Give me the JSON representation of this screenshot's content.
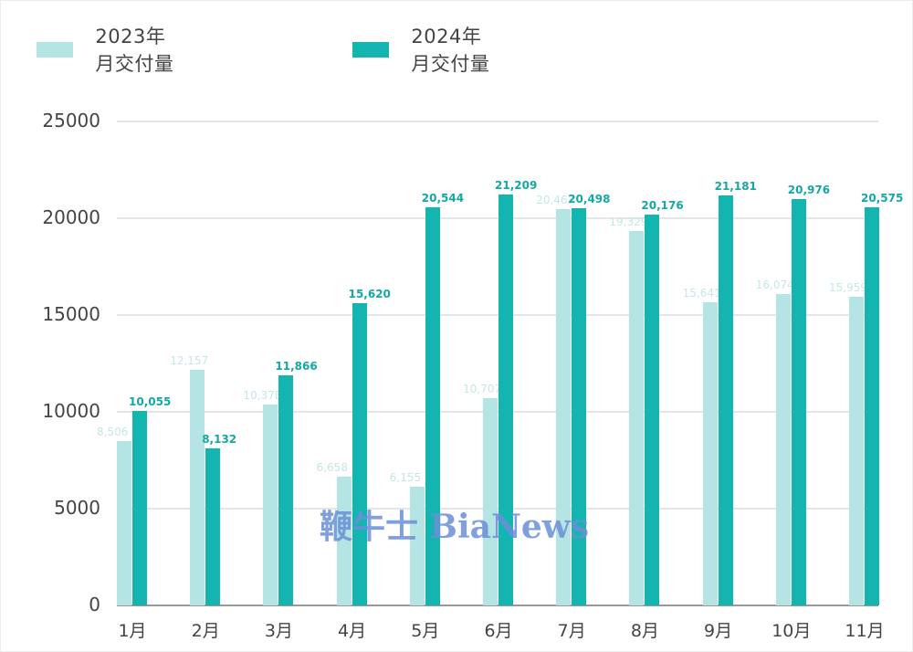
{
  "legend": [
    {
      "label": "2023年月交付量",
      "color": "#b4e4e4"
    },
    {
      "label": "2024年月交付量",
      "color": "#14b4b0"
    }
  ],
  "watermark": "鞭牛士 BiaNews",
  "y_ticks": [
    "25000",
    "20000",
    "15000",
    "10000",
    "5000",
    "0"
  ],
  "chart_data": {
    "type": "bar",
    "title": "",
    "xlabel": "",
    "ylabel": "",
    "ylim": [
      0,
      25000
    ],
    "grid": true,
    "legend_position": "top-left",
    "categories": [
      "1月",
      "2月",
      "3月",
      "4月",
      "5月",
      "6月",
      "7月",
      "8月",
      "9月",
      "10月",
      "11月"
    ],
    "series": [
      {
        "name": "2023年月交付量",
        "color": "#b4e4e4",
        "values": [
          8506,
          12157,
          10378,
          6658,
          6155,
          10707,
          20463,
          19329,
          15641,
          16074,
          15959
        ],
        "labels": [
          "8,506",
          "12,157",
          "10,378",
          "6,658",
          "6,155",
          "10,707",
          "20,463",
          "19,329",
          "15,641",
          "16,074",
          "15,959"
        ]
      },
      {
        "name": "2024年月交付量",
        "color": "#14b4b0",
        "values": [
          10055,
          8132,
          11866,
          15620,
          20544,
          21209,
          20498,
          20176,
          21181,
          20976,
          20575
        ],
        "labels": [
          "10,055",
          "8,132",
          "11,866",
          "15,620",
          "20,544",
          "21,209",
          "20,498",
          "20,176",
          "21,181",
          "20,976",
          "20,575"
        ]
      }
    ]
  }
}
